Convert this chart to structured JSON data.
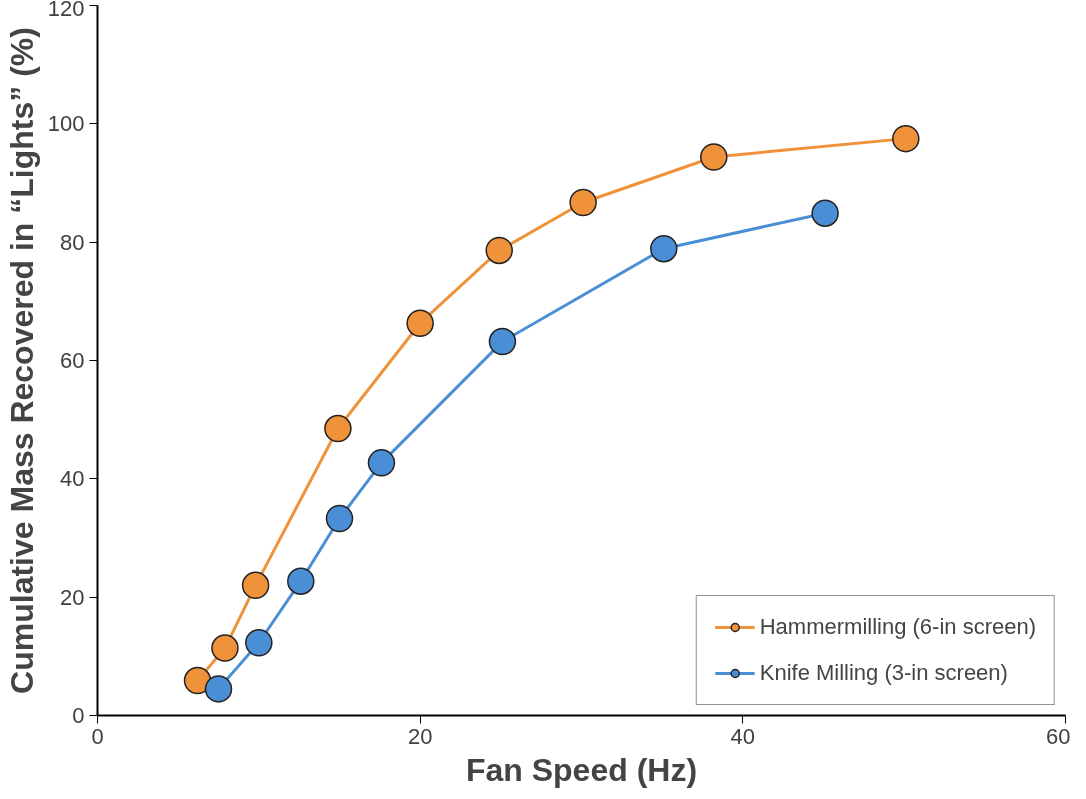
{
  "chart_data": {
    "type": "line",
    "xlabel": "Fan Speed (Hz)",
    "ylabel": "Cumulative Mass Recovered in “Lights” (%)",
    "xlim": [
      0,
      60
    ],
    "xticks": [
      0,
      20,
      40,
      60
    ],
    "ylim": [
      0,
      120
    ],
    "yticks": [
      0,
      20,
      40,
      60,
      80,
      100,
      120
    ],
    "grid": false,
    "legend": "bottom right",
    "marker": "circle",
    "line_style": "solid",
    "series": [
      {
        "name": "Hammermilling (6-in screen)",
        "color": "#f0923a",
        "x": [
          6.2,
          7.9,
          9.8,
          14.9,
          20,
          24.9,
          30.1,
          38.2,
          50.1
        ],
        "values": [
          5.9,
          11.4,
          22.0,
          48.5,
          66.3,
          78.6,
          86.7,
          94.4,
          97.5
        ]
      },
      {
        "name": "Knife Milling (3-in screen)",
        "color": "#4a8fd6",
        "x": [
          7.5,
          10,
          12.6,
          15,
          17.6,
          25.1,
          35.1,
          45.1
        ],
        "values": [
          4.5,
          12.3,
          22.7,
          33.3,
          42.7,
          63.2,
          78.9,
          84.9
        ]
      }
    ]
  }
}
